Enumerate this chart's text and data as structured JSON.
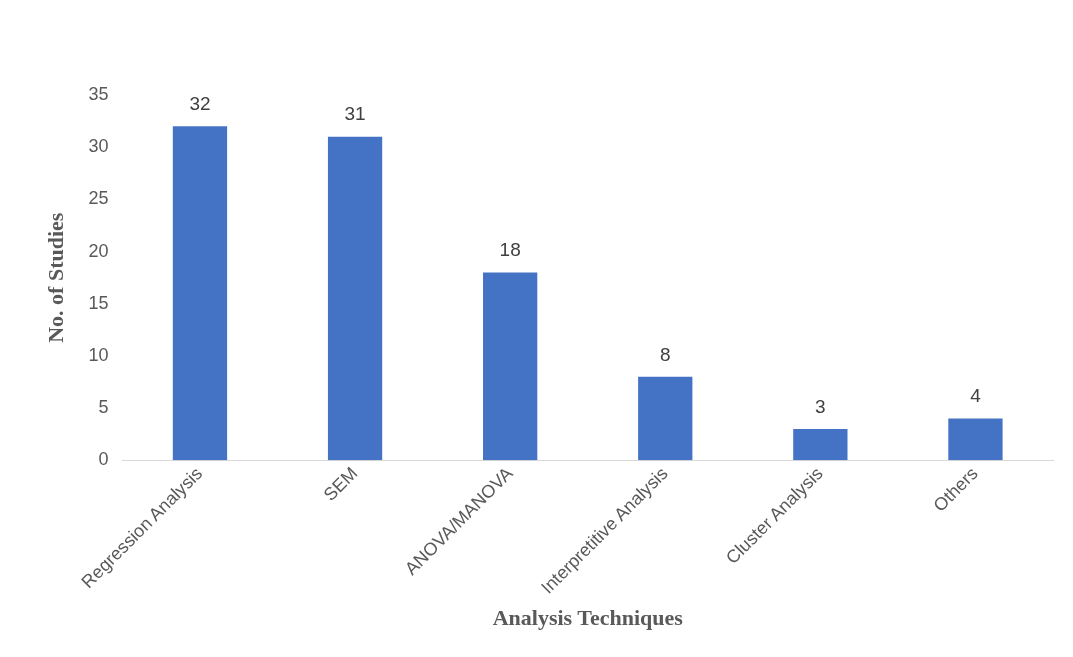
{
  "chart_data": {
    "type": "bar",
    "xlabel": "Analysis Techniques",
    "ylabel": "No. of Studies",
    "categories": [
      "Regression Analysis",
      "SEM",
      "ANOVA/MANOVA",
      "Interpretitive Analysis",
      "Cluster Analysis",
      "Others"
    ],
    "values": [
      32,
      31,
      18,
      8,
      3,
      4
    ],
    "color": "#4472c4",
    "ylim": [
      0,
      35
    ],
    "yticks": [
      0,
      5,
      10,
      15,
      20,
      25,
      30,
      35
    ],
    "grid": false,
    "legend": false,
    "data_labels": true
  }
}
